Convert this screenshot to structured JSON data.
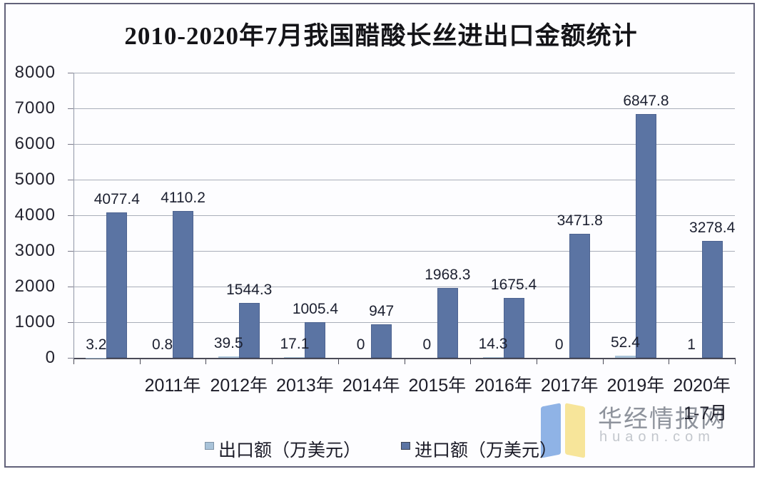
{
  "page": {
    "frame_color": "#62627a",
    "background": "#fdfdff"
  },
  "title": "2010-2020年7月我国醋酸长丝进出口金额统计",
  "watermark": {
    "brand": "华经情报网",
    "domain": "huaon.com",
    "logo_blue": "#8fb3e6",
    "logo_yellow": "#f7e59a"
  },
  "chart_data": {
    "type": "bar",
    "title": "2010-2020年7月我国醋酸长丝进出口金额统计",
    "categories": [
      "",
      "2011年",
      "2012年",
      "2013年",
      "2014年",
      "2015年",
      "2016年",
      "2017年",
      "2019年",
      "2020年"
    ],
    "last_category_sub_label": "1-7月",
    "series": [
      {
        "name": "出口额（万美元）",
        "color": "#a9c3d9",
        "values": [
          3.2,
          0.8,
          39.5,
          17.1,
          0,
          0,
          14.3,
          0,
          52.4,
          1
        ]
      },
      {
        "name": "进口额（万美元）",
        "color": "#5b74a3",
        "values": [
          4077.4,
          4110.2,
          1544.3,
          1005.4,
          947,
          1968.3,
          1675.4,
          3471.8,
          6847.8,
          3278.4
        ]
      }
    ],
    "y_ticks": [
      8000,
      7000,
      6000,
      5000,
      4000,
      3000,
      2000,
      1000,
      0
    ],
    "ylim": [
      0,
      8000
    ],
    "grid": true,
    "legend_position": "bottom",
    "value_labels": true
  }
}
